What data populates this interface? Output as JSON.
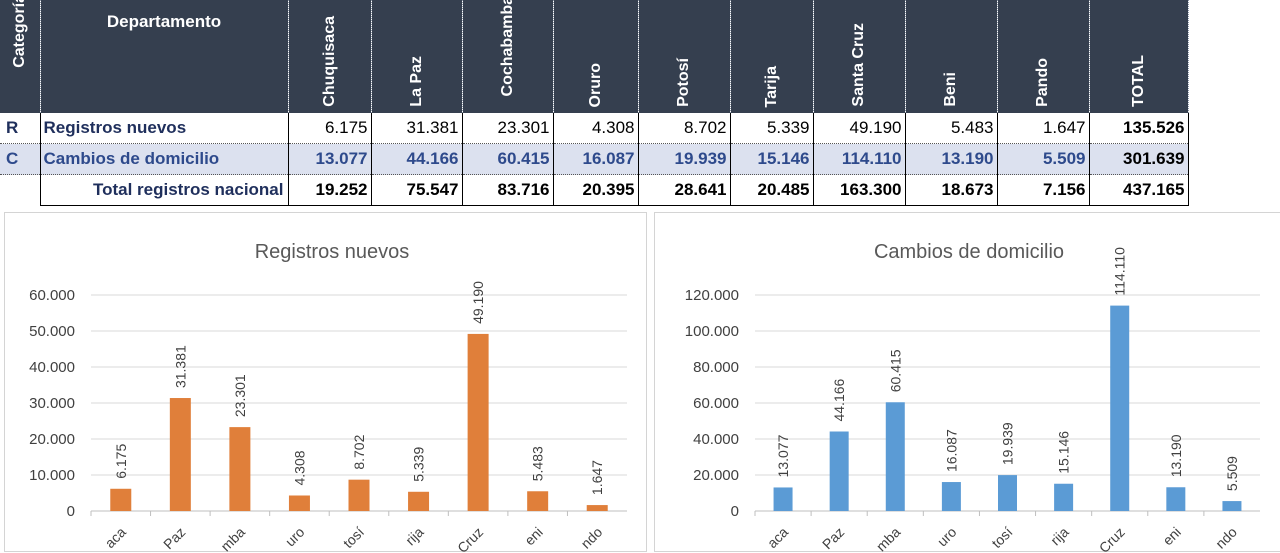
{
  "table": {
    "header": {
      "category": "Categoría",
      "department": "Departamento",
      "columns": [
        "Chuquisaca",
        "La Paz",
        "Cochabamba",
        "Oruro",
        "Potosí",
        "Tarija",
        "Santa Cruz",
        "Beni",
        "Pando",
        "TOTAL"
      ]
    },
    "rows": [
      {
        "code": "R",
        "label": "Registros nuevos",
        "values": [
          "6.175",
          "31.381",
          "23.301",
          "4.308",
          "8.702",
          "5.339",
          "49.190",
          "5.483",
          "1.647",
          "135.526"
        ]
      },
      {
        "code": "C",
        "label": "Cambios de domicilio",
        "values": [
          "13.077",
          "44.166",
          "60.415",
          "16.087",
          "19.939",
          "15.146",
          "114.110",
          "13.190",
          "5.509",
          "301.639"
        ]
      },
      {
        "code": "",
        "label": "Total registros nacional",
        "values": [
          "19.252",
          "75.547",
          "83.716",
          "20.395",
          "28.641",
          "20.485",
          "163.300",
          "18.673",
          "7.156",
          "437.165"
        ]
      }
    ]
  },
  "chart_data": [
    {
      "type": "bar",
      "title": "Registros nuevos",
      "categories": [
        "Chuquisaca",
        "La Paz",
        "Cochabamba",
        "Oruro",
        "Potosí",
        "Tarija",
        "Santa Cruz",
        "Beni",
        "Pando"
      ],
      "category_labels_visible": [
        "aca",
        "Paz",
        "mba",
        "uro",
        "tosí",
        "rija",
        "Cruz",
        "eni",
        "ndo"
      ],
      "values": [
        6175,
        31381,
        23301,
        4308,
        8702,
        5339,
        49190,
        5483,
        1647
      ],
      "data_labels": [
        "6.175",
        "31.381",
        "23.301",
        "4.308",
        "8.702",
        "5.339",
        "49.190",
        "5.483",
        "1.647"
      ],
      "yticks": [
        "0",
        "10.000",
        "20.000",
        "30.000",
        "40.000",
        "50.000",
        "60.000"
      ],
      "ylim": [
        0,
        60000
      ],
      "grid": true,
      "color": "#e07f3a",
      "xlabel": "",
      "ylabel": ""
    },
    {
      "type": "bar",
      "title": "Cambios de domicilio",
      "categories": [
        "Chuquisaca",
        "La Paz",
        "Cochabamba",
        "Oruro",
        "Potosí",
        "Tarija",
        "Santa Cruz",
        "Beni",
        "Pando"
      ],
      "category_labels_visible": [
        "aca",
        "Paz",
        "mba",
        "uro",
        "tosí",
        "rija",
        "Cruz",
        "eni",
        "ndo"
      ],
      "values": [
        13077,
        44166,
        60415,
        16087,
        19939,
        15146,
        114110,
        13190,
        5509
      ],
      "data_labels": [
        "13.077",
        "44.166",
        "60.415",
        "16.087",
        "19.939",
        "15.146",
        "114.110",
        "13.190",
        "5.509"
      ],
      "yticks": [
        "0",
        "20.000",
        "40.000",
        "60.000",
        "80.000",
        "100.000",
        "120.000"
      ],
      "ylim": [
        0,
        120000
      ],
      "grid": true,
      "color": "#5b9bd5",
      "xlabel": "",
      "ylabel": ""
    }
  ]
}
